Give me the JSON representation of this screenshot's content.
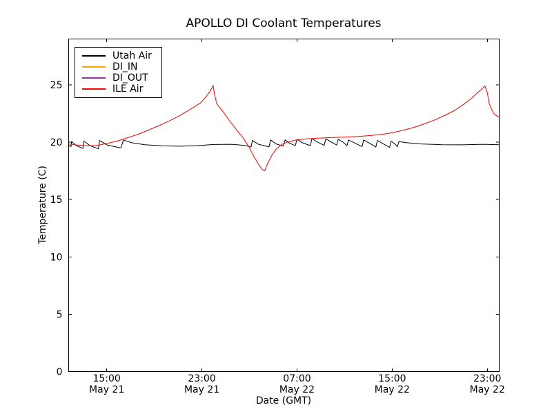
{
  "chart_data": {
    "type": "line",
    "title": "APOLLO DI Coolant Temperatures",
    "xlabel": "Date (GMT)",
    "ylabel": "Temperature (C)",
    "x_unit": "hours since May 21 00:00 GMT",
    "xlim": [
      11.8,
      48.0
    ],
    "ylim": [
      0,
      29
    ],
    "grid": false,
    "legend_position": "upper left",
    "x_ticks": [
      {
        "hour": 15,
        "time": "15:00",
        "date": "May 21"
      },
      {
        "hour": 23,
        "time": "23:00",
        "date": "May 21"
      },
      {
        "hour": 31,
        "time": "07:00",
        "date": "May 22"
      },
      {
        "hour": 39,
        "time": "15:00",
        "date": "May 22"
      },
      {
        "hour": 47,
        "time": "23:00",
        "date": "May 22"
      }
    ],
    "y_ticks": [
      0,
      5,
      10,
      15,
      20,
      25
    ],
    "series": [
      {
        "name": "Utah Air",
        "color": "#000000",
        "points": [
          [
            11.8,
            19.75
          ],
          [
            12.0,
            19.6
          ],
          [
            12.05,
            20.05
          ],
          [
            12.45,
            19.7
          ],
          [
            13.0,
            19.45
          ],
          [
            13.08,
            20.1
          ],
          [
            13.6,
            19.7
          ],
          [
            14.3,
            19.42
          ],
          [
            14.4,
            20.15
          ],
          [
            15.05,
            19.75
          ],
          [
            16.2,
            19.5
          ],
          [
            16.4,
            20.2
          ],
          [
            17.1,
            19.95
          ],
          [
            18.2,
            19.78
          ],
          [
            19.7,
            19.68
          ],
          [
            21.1,
            19.65
          ],
          [
            22.6,
            19.7
          ],
          [
            24.0,
            19.8
          ],
          [
            25.5,
            19.82
          ],
          [
            26.6,
            19.72
          ],
          [
            27.14,
            19.58
          ],
          [
            27.25,
            20.15
          ],
          [
            27.8,
            19.8
          ],
          [
            28.65,
            19.6
          ],
          [
            28.78,
            20.2
          ],
          [
            29.25,
            19.85
          ],
          [
            29.85,
            19.65
          ],
          [
            30.0,
            20.2
          ],
          [
            30.4,
            19.9
          ],
          [
            30.85,
            19.7
          ],
          [
            31.0,
            20.25
          ],
          [
            31.45,
            19.95
          ],
          [
            32.12,
            19.7
          ],
          [
            32.25,
            20.3
          ],
          [
            32.75,
            20.0
          ],
          [
            33.28,
            19.72
          ],
          [
            33.42,
            20.3
          ],
          [
            33.9,
            20.0
          ],
          [
            34.33,
            19.75
          ],
          [
            34.46,
            20.25
          ],
          [
            34.87,
            20.0
          ],
          [
            35.2,
            19.7
          ],
          [
            35.33,
            20.2
          ],
          [
            35.9,
            19.9
          ],
          [
            36.47,
            19.62
          ],
          [
            36.6,
            20.2
          ],
          [
            37.2,
            19.85
          ],
          [
            37.63,
            19.58
          ],
          [
            37.76,
            20.15
          ],
          [
            38.35,
            19.8
          ],
          [
            38.79,
            19.55
          ],
          [
            38.92,
            20.1
          ],
          [
            39.33,
            19.75
          ],
          [
            39.44,
            19.6
          ],
          [
            39.56,
            20.05
          ],
          [
            40.25,
            19.95
          ],
          [
            41.4,
            19.85
          ],
          [
            43.15,
            19.78
          ],
          [
            44.9,
            19.77
          ],
          [
            46.65,
            19.82
          ],
          [
            47.97,
            19.78
          ]
        ]
      },
      {
        "name": "DI_IN",
        "color": "#ffa500",
        "points": []
      },
      {
        "name": "DI_OUT",
        "color": "#993399",
        "points": []
      },
      {
        "name": "ILE Air",
        "color": "#ff0000",
        "points": [
          [
            11.8,
            19.85
          ],
          [
            12.55,
            19.75
          ],
          [
            13.3,
            19.68
          ],
          [
            14.2,
            19.72
          ],
          [
            15.05,
            19.9
          ],
          [
            15.9,
            20.1
          ],
          [
            16.8,
            20.4
          ],
          [
            17.65,
            20.7
          ],
          [
            18.5,
            21.05
          ],
          [
            19.4,
            21.45
          ],
          [
            20.25,
            21.85
          ],
          [
            21.1,
            22.3
          ],
          [
            22.0,
            22.85
          ],
          [
            22.85,
            23.4
          ],
          [
            23.3,
            23.9
          ],
          [
            23.65,
            24.4
          ],
          [
            23.85,
            24.75
          ],
          [
            23.95,
            24.95
          ],
          [
            24.05,
            24.2
          ],
          [
            24.25,
            23.35
          ],
          [
            24.75,
            22.7
          ],
          [
            25.3,
            21.9
          ],
          [
            25.9,
            21.1
          ],
          [
            26.45,
            20.4
          ],
          [
            26.95,
            19.6
          ],
          [
            27.4,
            18.7
          ],
          [
            27.8,
            18.0
          ],
          [
            28.1,
            17.6
          ],
          [
            28.27,
            17.5
          ],
          [
            28.55,
            18.2
          ],
          [
            28.9,
            18.9
          ],
          [
            29.25,
            19.4
          ],
          [
            29.7,
            19.8
          ],
          [
            30.3,
            20.05
          ],
          [
            31.0,
            20.2
          ],
          [
            31.85,
            20.3
          ],
          [
            32.75,
            20.35
          ],
          [
            33.9,
            20.4
          ],
          [
            35.05,
            20.45
          ],
          [
            36.2,
            20.5
          ],
          [
            37.35,
            20.6
          ],
          [
            38.25,
            20.7
          ],
          [
            39.1,
            20.85
          ],
          [
            39.95,
            21.05
          ],
          [
            40.85,
            21.3
          ],
          [
            41.7,
            21.6
          ],
          [
            42.6,
            21.95
          ],
          [
            43.45,
            22.35
          ],
          [
            44.3,
            22.8
          ],
          [
            45.0,
            23.3
          ],
          [
            45.65,
            23.8
          ],
          [
            46.15,
            24.3
          ],
          [
            46.6,
            24.7
          ],
          [
            46.8,
            24.9
          ],
          [
            47.0,
            24.3
          ],
          [
            47.15,
            23.4
          ],
          [
            47.35,
            22.9
          ],
          [
            47.5,
            22.55
          ],
          [
            47.7,
            22.35
          ],
          [
            47.97,
            22.2
          ]
        ]
      }
    ]
  }
}
